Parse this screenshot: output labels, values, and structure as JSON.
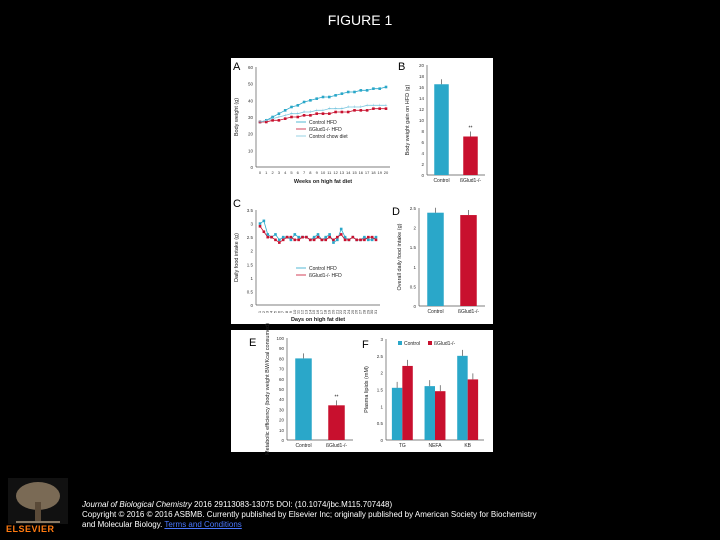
{
  "slide": {
    "title": "FIGURE 1"
  },
  "footer": {
    "journal": "Journal of Biological Chemistry",
    "citation_rest": " 2016 29113083-13075 DOI: (10.1074/jbc.M115.707448)",
    "copyright": "Copyright © 2016 © 2016 ASBMB. Currently published by Elsevier Inc; originally published by American Society for Biochemistry and Molecular Biology.",
    "terms_link": "Terms and Conditions",
    "publisher": "ELSEVIER"
  },
  "colors": {
    "control": "#2aa7c9",
    "ko": "#c8102e",
    "chow": "#7fc8e0"
  },
  "chart_data": [
    {
      "panel": "A",
      "type": "line",
      "xlabel": "Weeks on high fat diet",
      "ylabel": "Body weight (g)",
      "ylim": [
        0,
        60
      ],
      "yticks": [
        0,
        10,
        20,
        30,
        40,
        50,
        60
      ],
      "x": [
        0,
        1,
        2,
        3,
        4,
        5,
        6,
        7,
        8,
        9,
        10,
        11,
        12,
        13,
        14,
        15,
        16,
        17,
        18,
        19,
        20
      ],
      "series": [
        {
          "name": "Control HFD",
          "values": [
            27,
            28,
            30,
            32,
            34,
            36,
            37,
            39,
            40,
            41,
            42,
            42,
            43,
            44,
            45,
            45,
            46,
            46,
            47,
            47,
            48
          ]
        },
        {
          "name": "ßGlud1-/- HFD",
          "values": [
            27,
            27,
            28,
            28,
            29,
            30,
            30,
            31,
            31,
            32,
            32,
            32,
            33,
            33,
            33,
            34,
            34,
            34,
            35,
            35,
            35
          ]
        },
        {
          "name": "Control chow diet",
          "values": [
            27,
            28,
            29,
            30,
            31,
            32,
            32,
            33,
            33,
            34,
            34,
            35,
            35,
            35,
            36,
            36,
            36,
            37,
            37,
            37,
            37
          ]
        }
      ]
    },
    {
      "panel": "B",
      "type": "bar",
      "ylabel": "Body weight gain on HFD (g)",
      "ylim": [
        0,
        20
      ],
      "yticks": [
        0,
        2,
        4,
        6,
        8,
        10,
        12,
        14,
        16,
        18,
        20
      ],
      "categories": [
        "Control",
        "ßGlud1-/-"
      ],
      "values": [
        16.5,
        7
      ],
      "annotations": [
        "",
        "**"
      ]
    },
    {
      "panel": "C",
      "type": "line",
      "xlabel": "Days on high fat diet",
      "ylabel": "Daily food intake (g)",
      "ylim": [
        0,
        3.5
      ],
      "yticks": [
        0,
        0.5,
        1.0,
        1.5,
        2.0,
        2.5,
        3.0,
        3.5
      ],
      "x": [
        1,
        2,
        3,
        4,
        5,
        6,
        7,
        8,
        9,
        10,
        11,
        12,
        13,
        14,
        15,
        16,
        17,
        18,
        19,
        20,
        21,
        22,
        23,
        24,
        25,
        26,
        27,
        28,
        29,
        30,
        31
      ],
      "series": [
        {
          "name": "Control HFD",
          "values": [
            3.0,
            3.1,
            2.6,
            2.5,
            2.6,
            2.4,
            2.5,
            2.5,
            2.4,
            2.6,
            2.5,
            2.5,
            2.5,
            2.4,
            2.5,
            2.6,
            2.4,
            2.5,
            2.6,
            2.3,
            2.4,
            2.8,
            2.5,
            2.4,
            2.5,
            2.4,
            2.4,
            2.5,
            2.4,
            2.4,
            2.5
          ]
        },
        {
          "name": "ßGlud1-/- HFD",
          "values": [
            2.9,
            2.7,
            2.5,
            2.5,
            2.4,
            2.3,
            2.4,
            2.5,
            2.5,
            2.4,
            2.4,
            2.5,
            2.5,
            2.4,
            2.4,
            2.5,
            2.4,
            2.4,
            2.5,
            2.4,
            2.5,
            2.6,
            2.4,
            2.4,
            2.5,
            2.4,
            2.4,
            2.4,
            2.5,
            2.5,
            2.4
          ]
        }
      ]
    },
    {
      "panel": "D",
      "type": "bar",
      "ylabel": "Overall daily food intake (g)",
      "ylim": [
        0,
        2.5
      ],
      "yticks": [
        0,
        0.5,
        1.0,
        1.5,
        2.0,
        2.5
      ],
      "categories": [
        "Control",
        "ßGlud1-/-"
      ],
      "values": [
        2.38,
        2.32
      ]
    },
    {
      "panel": "E",
      "type": "bar",
      "ylabel": "Metabolic efficiency (body weight BW/Kcal consumed)",
      "ylim": [
        0,
        100
      ],
      "yticks": [
        0,
        10,
        20,
        30,
        40,
        50,
        60,
        70,
        80,
        90,
        100
      ],
      "categories": [
        "Control",
        "ßGlud1-/-"
      ],
      "values": [
        80,
        34
      ],
      "annotations": [
        "",
        "**"
      ]
    },
    {
      "panel": "F",
      "type": "bar",
      "ylabel": "Plasma lipids (mM)",
      "ylim": [
        0,
        3.0
      ],
      "yticks": [
        0,
        0.5,
        1.0,
        1.5,
        2.0,
        2.5,
        3.0
      ],
      "categories": [
        "TG",
        "NEFA",
        "KB"
      ],
      "series": [
        {
          "name": "Control",
          "values": [
            1.55,
            1.6,
            2.5
          ]
        },
        {
          "name": "ßGlud1-/-",
          "values": [
            2.2,
            1.45,
            1.8
          ]
        }
      ]
    }
  ]
}
